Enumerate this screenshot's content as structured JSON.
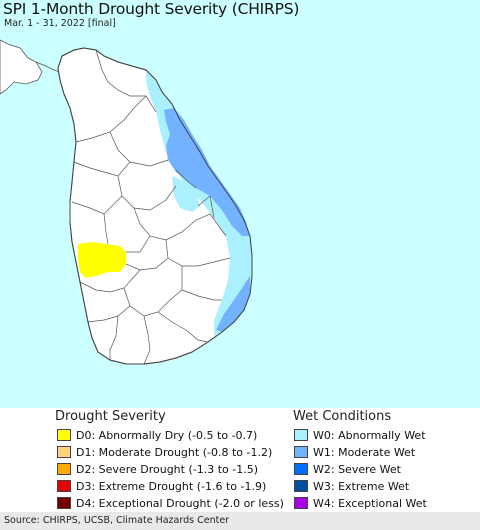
{
  "header": {
    "title": "SPI 1-Month Drought Severity (CHIRPS)",
    "subtitle": "Mar. 1 - 31, 2022 [final]"
  },
  "map": {
    "ocean_color": "#ccffff",
    "land_color": "#ffffff",
    "boundary_color": "#555555"
  },
  "legend": {
    "drought": {
      "title": "Drought Severity",
      "items": [
        {
          "label": "D0: Abnormally Dry (-0.5 to -0.7)",
          "color": "#ffff00"
        },
        {
          "label": "D1: Moderate Drought (-0.8 to -1.2)",
          "color": "#fcd37f"
        },
        {
          "label": "D2: Severe Drought (-1.3 to -1.5)",
          "color": "#ffaa00"
        },
        {
          "label": "D3: Extreme Drought (-1.6 to -1.9)",
          "color": "#e60000"
        },
        {
          "label": "D4: Exceptional Drought (-2.0 or less)",
          "color": "#730000"
        }
      ]
    },
    "wet": {
      "title": "Wet Conditions",
      "items": [
        {
          "label": "W0: Abnormally Wet",
          "color": "#aaf0ff"
        },
        {
          "label": "W1: Moderate Wet",
          "color": "#73b2ff"
        },
        {
          "label": "W2: Severe Wet",
          "color": "#0070ff"
        },
        {
          "label": "W3: Extreme Wet",
          "color": "#0050a0"
        },
        {
          "label": "W4: Exceptional Wet",
          "color": "#a500e6"
        }
      ]
    }
  },
  "footer": {
    "source": "Source: CHIRPS, UCSB, Climate Hazards Center"
  }
}
